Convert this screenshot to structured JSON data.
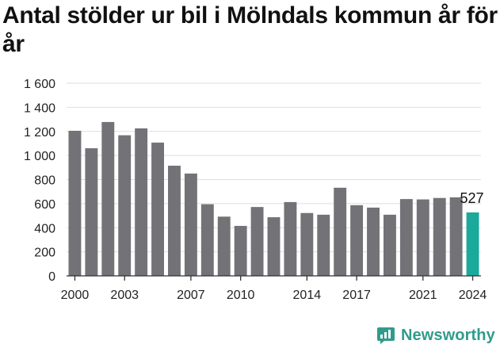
{
  "chart_data": {
    "type": "bar",
    "title": "Antal stölder ur bil i Mölndals kommun år för år",
    "xlabel": "",
    "ylabel": "",
    "categories": [
      "2000",
      "2001",
      "2002",
      "2003",
      "2004",
      "2005",
      "2006",
      "2007",
      "2008",
      "2009",
      "2010",
      "2011",
      "2012",
      "2013",
      "2014",
      "2015",
      "2016",
      "2017",
      "2018",
      "2019",
      "2020",
      "2021",
      "2022",
      "2023",
      "2024"
    ],
    "x_tick_labels": [
      "2000",
      "2003",
      "2007",
      "2010",
      "2014",
      "2017",
      "2021",
      "2024"
    ],
    "values": [
      1205,
      1060,
      1278,
      1168,
      1225,
      1107,
      915,
      850,
      595,
      492,
      415,
      572,
      487,
      613,
      522,
      508,
      732,
      587,
      567,
      508,
      638,
      635,
      647,
      652,
      527
    ],
    "ylim": [
      0,
      1600
    ],
    "y_ticks": [
      0,
      200,
      400,
      600,
      800,
      1000,
      1200,
      1400,
      1600
    ],
    "y_tick_labels": [
      "0",
      "200",
      "400",
      "600",
      "800",
      "1 000",
      "1 200",
      "1 400",
      "1 600"
    ],
    "grid": true,
    "highlight": {
      "index": 24,
      "label": "527"
    },
    "colors": {
      "bar": "#737277",
      "highlight": "#1aa99b",
      "grid": "#dedede",
      "axis": "#333333"
    }
  },
  "brand": {
    "name": "Newsworthy",
    "icon": "newsworthy-logo-icon",
    "color": "#2e9c8c"
  }
}
